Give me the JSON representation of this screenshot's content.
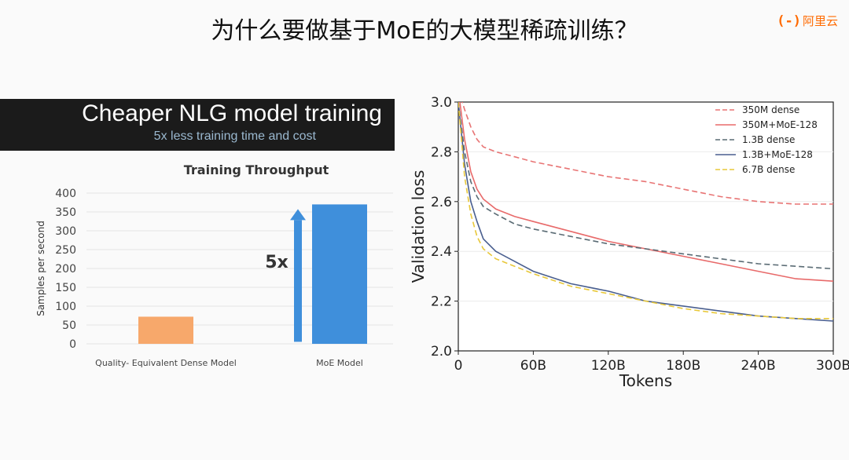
{
  "slide": {
    "title": "为什么要做基于MoE的大模型稀疏训练？",
    "logo_mark": "(-)",
    "logo_text": "阿里云"
  },
  "left": {
    "banner_title": "Cheaper NLG model training",
    "banner_subtitle": "5x less training time and cost"
  },
  "chart_data": [
    {
      "type": "bar",
      "title": "Training Throughput",
      "xlabel": "",
      "ylabel": "Samples per second",
      "ylim": [
        0,
        400
      ],
      "yticks": [
        0,
        50,
        100,
        150,
        200,
        250,
        300,
        350,
        400
      ],
      "categories": [
        "Quality- Equivalent Dense Model",
        "MoE Model"
      ],
      "values": [
        72,
        370
      ],
      "colors": [
        "#f7a86b",
        "#3f8fdb"
      ],
      "annotation": "5x",
      "arrow_color": "#3f8fdb"
    },
    {
      "type": "line",
      "title": "",
      "xlabel": "Tokens",
      "ylabel": "Validation loss",
      "xlim": [
        0,
        300
      ],
      "ylim": [
        2.0,
        3.0
      ],
      "xticks": [
        0,
        60,
        120,
        180,
        240,
        300
      ],
      "xtick_labels": [
        "0",
        "60B",
        "120B",
        "180B",
        "240B",
        "300B"
      ],
      "yticks": [
        2.0,
        2.2,
        2.4,
        2.6,
        2.8,
        3.0
      ],
      "ytick_labels": [
        "2.0",
        "2.2",
        "2.4",
        "2.6",
        "2.8",
        "3.0"
      ],
      "legend_position": "top-right",
      "x": [
        0,
        5,
        10,
        15,
        20,
        30,
        45,
        60,
        90,
        120,
        150,
        180,
        210,
        240,
        270,
        300
      ],
      "series": [
        {
          "name": "350M dense",
          "color": "#e87474",
          "dash": "dashed",
          "values": [
            3.05,
            2.97,
            2.9,
            2.85,
            2.82,
            2.8,
            2.78,
            2.76,
            2.73,
            2.7,
            2.68,
            2.65,
            2.62,
            2.6,
            2.59,
            2.59
          ]
        },
        {
          "name": "350M+MoE-128",
          "color": "#e86a6a",
          "dash": "solid",
          "values": [
            3.05,
            2.85,
            2.72,
            2.65,
            2.61,
            2.57,
            2.54,
            2.52,
            2.48,
            2.44,
            2.41,
            2.38,
            2.35,
            2.32,
            2.29,
            2.28
          ]
        },
        {
          "name": "1.3B dense",
          "color": "#5a6b74",
          "dash": "dashed",
          "values": [
            3.0,
            2.8,
            2.68,
            2.62,
            2.58,
            2.55,
            2.51,
            2.49,
            2.46,
            2.43,
            2.41,
            2.39,
            2.37,
            2.35,
            2.34,
            2.33
          ]
        },
        {
          "name": "1.3B+MoE-128",
          "color": "#4a5f8f",
          "dash": "solid",
          "values": [
            3.0,
            2.75,
            2.6,
            2.52,
            2.45,
            2.4,
            2.36,
            2.32,
            2.27,
            2.24,
            2.2,
            2.18,
            2.16,
            2.14,
            2.13,
            2.12
          ]
        },
        {
          "name": "6.7B dense",
          "color": "#e8c83a",
          "dash": "dashed",
          "values": [
            3.0,
            2.7,
            2.55,
            2.46,
            2.41,
            2.37,
            2.34,
            2.31,
            2.26,
            2.23,
            2.2,
            2.17,
            2.15,
            2.14,
            2.13,
            2.13
          ]
        }
      ]
    }
  ]
}
